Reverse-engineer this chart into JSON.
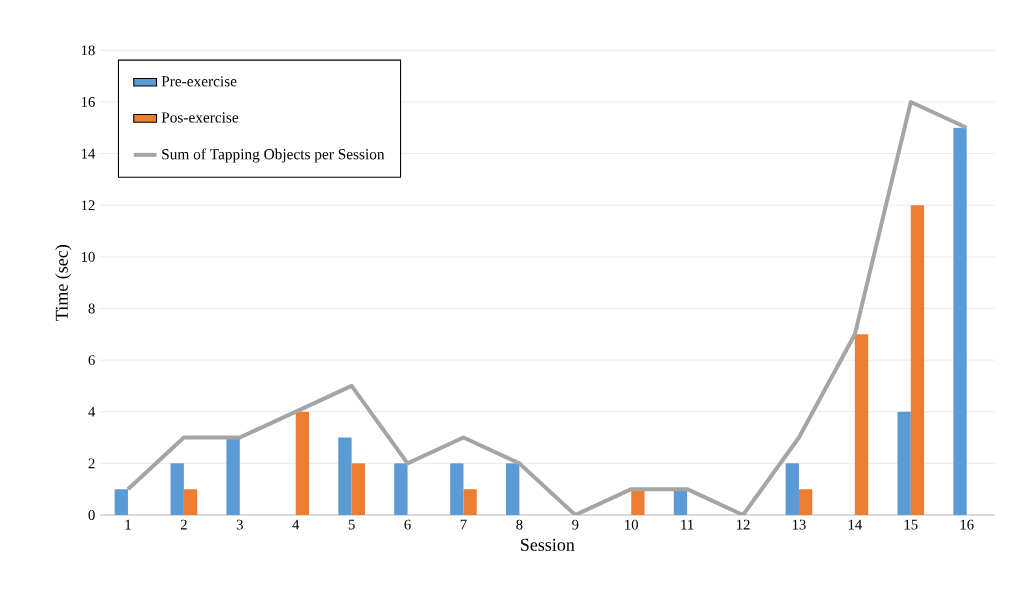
{
  "chart_data": {
    "type": "bar",
    "xlabel": "Session",
    "ylabel": "Time (sec)",
    "categories": [
      "1",
      "2",
      "3",
      "4",
      "5",
      "6",
      "7",
      "8",
      "9",
      "10",
      "11",
      "12",
      "13",
      "14",
      "15",
      "16"
    ],
    "series": [
      {
        "name": "Pre-exercise",
        "color": "#5b9bd5",
        "values": [
          1,
          2,
          3,
          null,
          3,
          2,
          2,
          2,
          null,
          null,
          1,
          null,
          2,
          null,
          4,
          15
        ]
      },
      {
        "name": "Pos-exercise",
        "color": "#ed7d31",
        "values": [
          null,
          1,
          null,
          4,
          2,
          null,
          1,
          null,
          null,
          1,
          null,
          null,
          1,
          7,
          12,
          null
        ]
      },
      {
        "name": "Sum of Tapping Objects per Session",
        "color": "#a5a5a5",
        "type": "line",
        "values": [
          1,
          3,
          3,
          4,
          5,
          2,
          3,
          2,
          0,
          1,
          1,
          0,
          3,
          7,
          16,
          15
        ]
      }
    ],
    "ylim": [
      0,
      18
    ],
    "yticks": [
      0,
      2,
      4,
      6,
      8,
      10,
      12,
      14,
      16,
      18
    ],
    "grid": "y",
    "legend": "top left"
  }
}
